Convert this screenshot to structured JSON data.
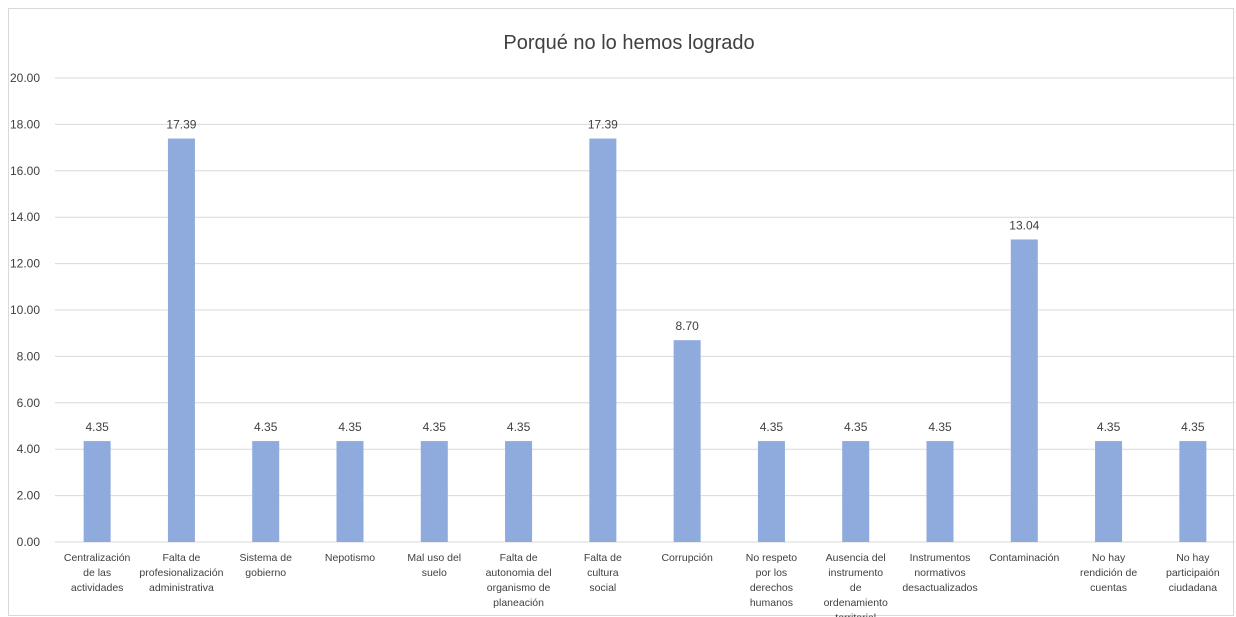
{
  "chart_data": {
    "type": "bar",
    "title": "Porqué no lo hemos logrado",
    "xlabel": "",
    "ylabel": "",
    "ylim": [
      0,
      20
    ],
    "y_ticks": [
      "0.00",
      "2.00",
      "4.00",
      "6.00",
      "8.00",
      "10.00",
      "12.00",
      "14.00",
      "16.00",
      "18.00",
      "20.00"
    ],
    "grid": true,
    "bar_color": "#8faadc",
    "categories": [
      "Centralización de las actividades",
      "Falta de profesionalización administrativa",
      "Sistema de gobierno",
      "Nepotismo",
      "Mal uso del suelo",
      "Falta de autonomia del organismo de planeación",
      "Falta de cultura social",
      "Corrupción",
      "No respeto por los derechos humanos",
      "Ausencia del instrumento de ordenamiento territorial",
      "Instrumentos normativos desactualizados",
      "Contaminación",
      "No hay rendición de cuentas",
      "No hay participaión ciudadana"
    ],
    "values": [
      4.35,
      17.39,
      4.35,
      4.35,
      4.35,
      4.35,
      17.39,
      8.7,
      4.35,
      4.35,
      4.35,
      13.04,
      4.35,
      4.35
    ],
    "data_labels": [
      "4.35",
      "17.39",
      "4.35",
      "4.35",
      "4.35",
      "4.35",
      "17.39",
      "8.70",
      "4.35",
      "4.35",
      "4.35",
      "13.04",
      "4.35",
      "4.35"
    ]
  }
}
